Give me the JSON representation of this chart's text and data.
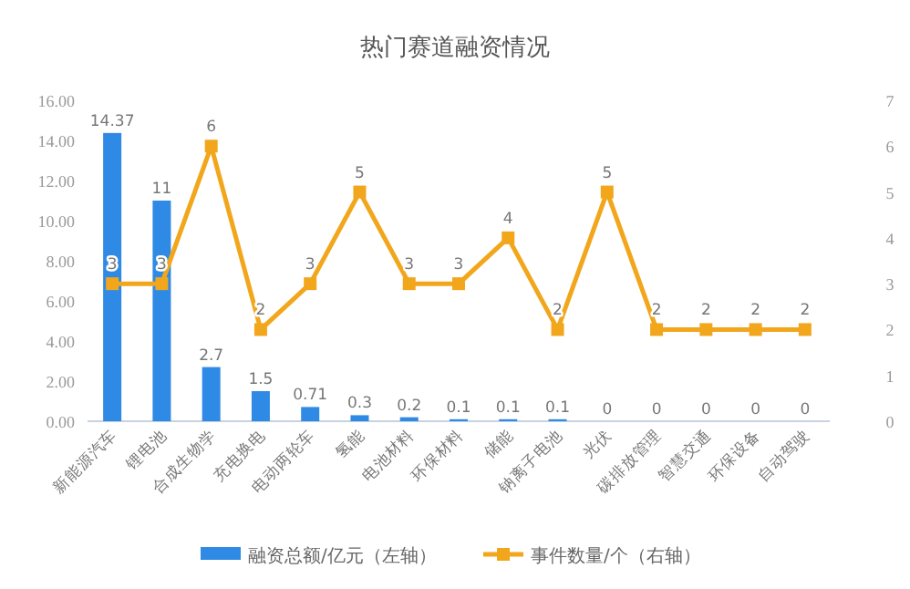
{
  "chart_data": {
    "type": "bar",
    "title": "热门赛道融资情况",
    "categories": [
      "新能源汽车",
      "锂电池",
      "合成生物学",
      "充电换电",
      "电动两轮车",
      "氢能",
      "电池材料",
      "环保材料",
      "储能",
      "钠离子电池",
      "光伏",
      "碳排放管理",
      "智慧交通",
      "环保设备",
      "自动驾驶"
    ],
    "series": [
      {
        "name": "融资总额/亿元（左轴）",
        "color": "#2f8ae5",
        "values": [
          14.37,
          11,
          2.7,
          1.5,
          0.71,
          0.3,
          0.2,
          0.1,
          0.1,
          0.1,
          0,
          0,
          0,
          0,
          0
        ]
      },
      {
        "name": "事件数量/个（右轴）",
        "type": "line",
        "axis": "y2",
        "color": "#f2a61c",
        "marker": "square",
        "values": [
          3,
          3,
          6,
          2,
          3,
          5,
          3,
          3,
          4,
          2,
          5,
          2,
          2,
          2,
          2
        ]
      }
    ],
    "ylim": [
      0,
      16
    ],
    "yticks": [
      {
        "value": 0,
        "label": "0.00"
      },
      {
        "value": 2,
        "label": "2.00"
      },
      {
        "value": 4,
        "label": "4.00"
      },
      {
        "value": 6,
        "label": "6.00"
      },
      {
        "value": 8,
        "label": "8.00"
      },
      {
        "value": 10,
        "label": "10.00"
      },
      {
        "value": 12,
        "label": "12.00"
      },
      {
        "value": 14,
        "label": "14.00"
      },
      {
        "value": 16,
        "label": "16.00"
      }
    ],
    "y2lim": [
      0,
      7
    ],
    "y2ticks": [
      0,
      1,
      2,
      3,
      4,
      5,
      6,
      7
    ],
    "data_labels": true,
    "grid": false,
    "legend": "bottom"
  }
}
